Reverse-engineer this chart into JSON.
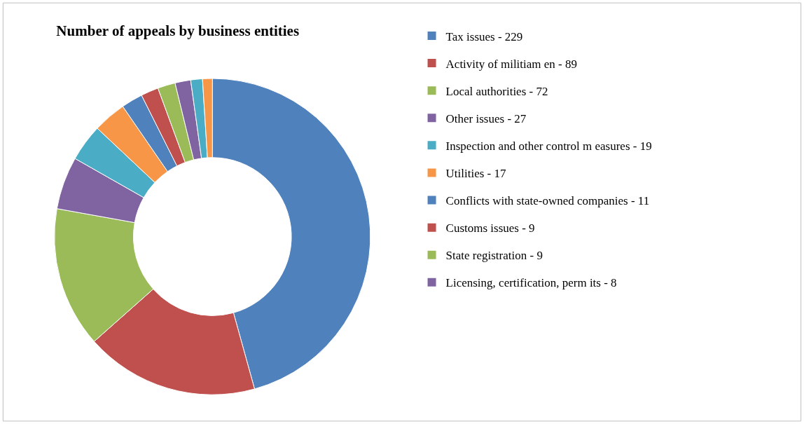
{
  "chart_data": {
    "type": "donut",
    "title": "Number of appeals by business entities",
    "categories": [
      "Tax issues - 229",
      "Activity of militiam en - 89",
      "Local authorities - 72",
      "Other issues - 27",
      "Inspection and other control m easures - 19",
      "Utilities - 17",
      "Conflicts with state-owned companies - 11",
      "Customs issues - 9",
      "State registration - 9",
      "Licensing, certification, perm its - 8",
      null,
      null
    ],
    "values": [
      45.7,
      17.76,
      14.37,
      5.39,
      3.79,
      3.39,
      2.2,
      1.8,
      1.8,
      1.6,
      1.2,
      1.0
    ],
    "colors": [
      "#4f81bd",
      "#c0504d",
      "#9bbb59",
      "#8064a2",
      "#4bacc6",
      "#f79646",
      "#4f81bd",
      "#c0504d",
      "#9bbb59",
      "#8064a2",
      "#4bacc6",
      "#f79646"
    ],
    "legend": "right"
  }
}
